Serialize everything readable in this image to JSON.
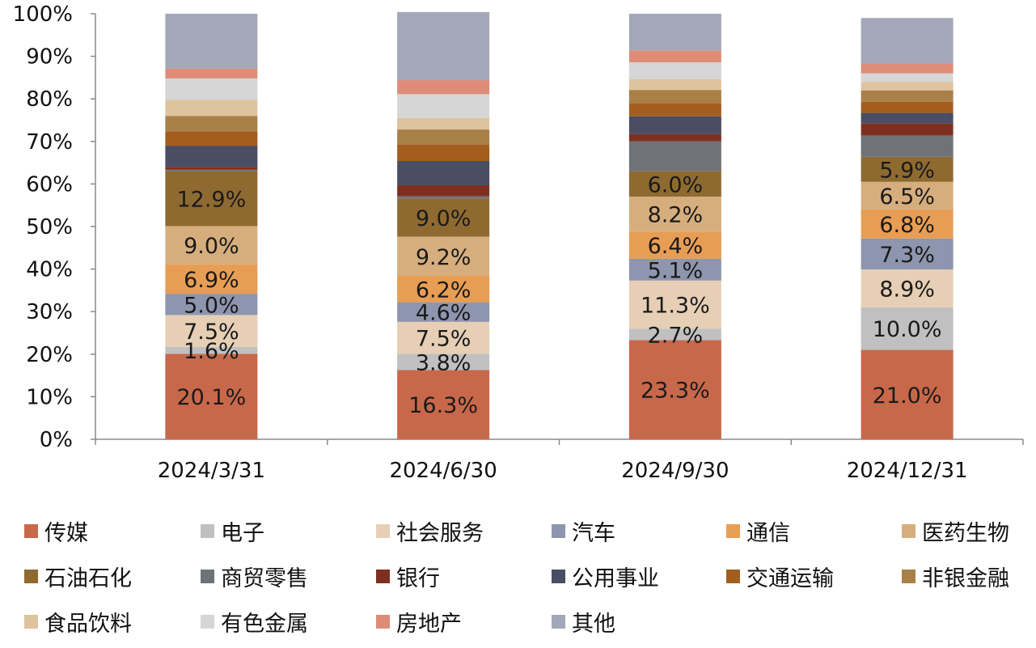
{
  "chart_data": {
    "type": "bar",
    "stacked": true,
    "title": "",
    "xlabel": "",
    "ylabel": "",
    "ylim": [
      0,
      100
    ],
    "yticks": [
      "0%",
      "10%",
      "20%",
      "30%",
      "40%",
      "50%",
      "60%",
      "70%",
      "80%",
      "90%",
      "100%"
    ],
    "categories": [
      "2024/3/31",
      "2024/6/30",
      "2024/9/30",
      "2024/12/31"
    ],
    "series": [
      {
        "name": "传媒",
        "color": "#C8684A",
        "values": [
          20.1,
          16.3,
          23.3,
          21.0
        ],
        "labels": [
          "20.1%",
          "16.3%",
          "23.3%",
          "21.0%"
        ]
      },
      {
        "name": "电子",
        "color": "#C0C0C0",
        "values": [
          1.6,
          3.8,
          2.7,
          10.0
        ],
        "labels": [
          "1.6%",
          "3.8%",
          "2.7%",
          "10.0%"
        ]
      },
      {
        "name": "社会服务",
        "color": "#E6CFB5",
        "values": [
          7.5,
          7.5,
          11.3,
          8.9
        ],
        "labels": [
          "7.5%",
          "7.5%",
          "11.3%",
          "8.9%"
        ]
      },
      {
        "name": "汽车",
        "color": "#8E95AE",
        "values": [
          5.0,
          4.6,
          5.1,
          7.3
        ],
        "labels": [
          "5.0%",
          "4.6%",
          "5.1%",
          "7.3%"
        ]
      },
      {
        "name": "通信",
        "color": "#E89D55",
        "values": [
          6.9,
          6.2,
          6.4,
          6.8
        ],
        "labels": [
          "6.9%",
          "6.2%",
          "6.4%",
          "6.8%"
        ]
      },
      {
        "name": "医药生物",
        "color": "#D6AE7E",
        "values": [
          9.0,
          9.2,
          8.2,
          6.5
        ],
        "labels": [
          "9.0%",
          "9.2%",
          "8.2%",
          "6.5%"
        ]
      },
      {
        "name": "石油石化",
        "color": "#8F6A30",
        "values": [
          12.9,
          9.0,
          6.0,
          5.9
        ],
        "labels": [
          "12.9%",
          "9.0%",
          "6.0%",
          "5.9%"
        ]
      },
      {
        "name": "商贸零售",
        "color": "#6F7378",
        "values": [
          0.4,
          0.5,
          7.0,
          5.0
        ],
        "labels": [
          "",
          "",
          "",
          ""
        ]
      },
      {
        "name": "银行",
        "color": "#7E3020",
        "values": [
          0.6,
          2.6,
          1.8,
          2.8
        ],
        "labels": [
          "",
          "",
          "",
          ""
        ]
      },
      {
        "name": "公用事业",
        "color": "#4A4D63",
        "values": [
          5.0,
          5.7,
          4.1,
          2.5
        ],
        "labels": [
          "",
          "",
          "",
          ""
        ]
      },
      {
        "name": "交通运输",
        "color": "#A35E1E",
        "values": [
          3.4,
          3.8,
          3.0,
          2.6
        ],
        "labels": [
          "",
          "",
          "",
          ""
        ]
      },
      {
        "name": "非银金融",
        "color": "#A88048",
        "values": [
          3.6,
          3.6,
          3.2,
          2.7
        ],
        "labels": [
          "",
          "",
          "",
          ""
        ]
      },
      {
        "name": "食品饮料",
        "color": "#DEC39E",
        "values": [
          3.8,
          2.7,
          2.5,
          2.0
        ],
        "labels": [
          "",
          "",
          "",
          ""
        ]
      },
      {
        "name": "有色金属",
        "color": "#D6D6D6",
        "values": [
          5.0,
          5.6,
          4.0,
          2.0
        ],
        "labels": [
          "",
          "",
          "",
          ""
        ]
      },
      {
        "name": "房地产",
        "color": "#DE8C78",
        "values": [
          2.3,
          3.3,
          2.8,
          2.3
        ],
        "labels": [
          "",
          "",
          "",
          ""
        ]
      },
      {
        "name": "其他",
        "color": "#A3A7B8",
        "values": [
          12.9,
          16.0,
          8.6,
          10.7
        ],
        "labels": [
          "",
          "",
          "",
          ""
        ]
      }
    ],
    "grid": false,
    "legend_position": "bottom"
  }
}
